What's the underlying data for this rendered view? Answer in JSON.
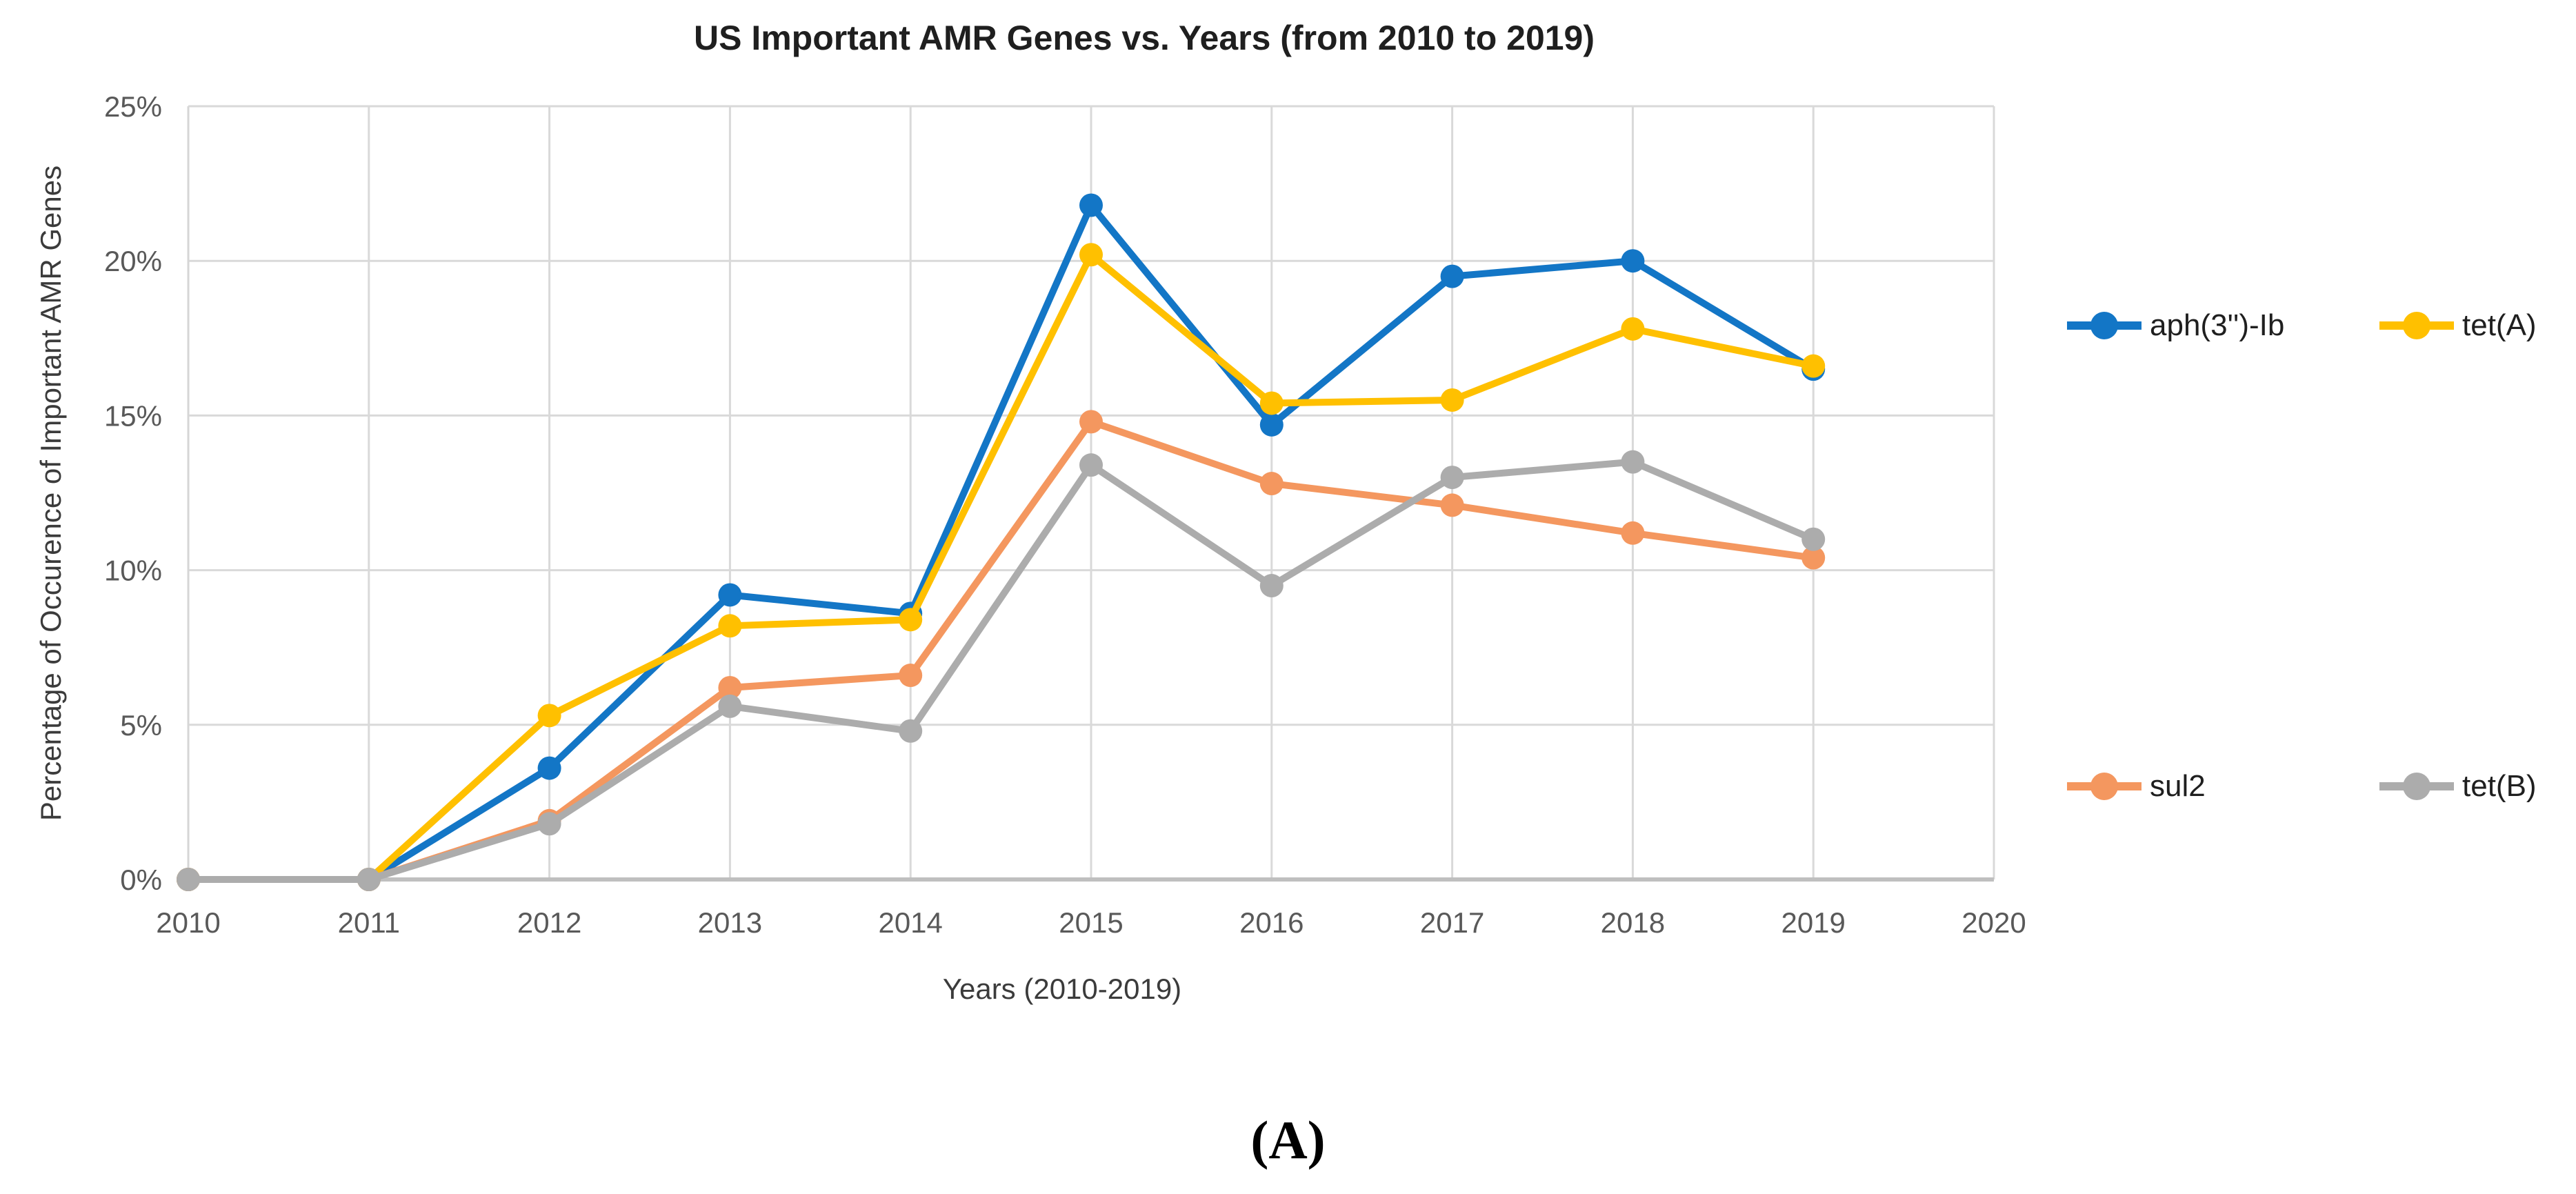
{
  "figure": {
    "caption": "(A)"
  },
  "chart_data": {
    "type": "line",
    "title": "US Important AMR Genes vs. Years (from 2010 to 2019)",
    "xlabel": "Years (2010-2019)",
    "ylabel": "Percentage of Occurence of Important AMR Genes",
    "x": [
      2010,
      2011,
      2012,
      2013,
      2014,
      2015,
      2016,
      2017,
      2018,
      2019
    ],
    "x_axis_ticks": [
      2010,
      2011,
      2012,
      2013,
      2014,
      2015,
      2016,
      2017,
      2018,
      2019,
      2020
    ],
    "y_axis_ticks": [
      0,
      5,
      10,
      15,
      20,
      25
    ],
    "y_tick_suffix": "%",
    "xlim": [
      2010,
      2020
    ],
    "ylim": [
      0,
      25
    ],
    "grid": true,
    "legend_position": "right",
    "series": [
      {
        "name": "aph(3'')-Ib",
        "color": "#1376C6",
        "values": [
          0,
          0,
          3.6,
          9.2,
          8.6,
          21.8,
          14.7,
          19.5,
          20.0,
          16.5
        ]
      },
      {
        "name": "tet(A)",
        "color": "#FFC000",
        "values": [
          0,
          0,
          5.3,
          8.2,
          8.4,
          20.2,
          15.4,
          15.5,
          17.8,
          16.6
        ]
      },
      {
        "name": "sul2",
        "color": "#F4975F",
        "values": [
          0,
          0,
          1.9,
          6.2,
          6.6,
          14.8,
          12.8,
          12.1,
          11.2,
          10.4
        ]
      },
      {
        "name": "tet(B)",
        "color": "#ACACAC",
        "values": [
          0,
          0,
          1.8,
          5.6,
          4.8,
          13.4,
          9.5,
          13.0,
          13.5,
          11.0
        ]
      }
    ],
    "style_colors": {
      "gridline": "#D9D9D9",
      "axis_line": "#BFBFBF",
      "left_axis_line": "#D6D6D6",
      "tick_text": "#595959",
      "axis_title_text": "#3b3b3b"
    }
  }
}
